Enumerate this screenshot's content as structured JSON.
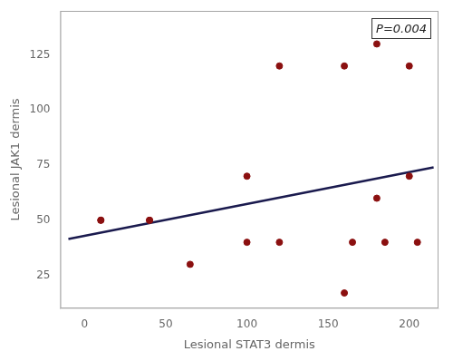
{
  "chart_data": {
    "type": "scatter",
    "x_label": "Lesional STAT3 dermis",
    "y_label": "Lesional JAK1 dermis",
    "annotations": [
      "P=0.004"
    ],
    "series": [
      {
        "type": "scatter",
        "color": "#8B1010",
        "marker": "circle",
        "x": [
          10,
          10,
          40,
          40,
          65,
          100,
          100,
          120,
          120,
          160,
          160,
          165,
          180,
          180,
          185,
          200,
          200,
          205
        ],
        "values": [
          50,
          50,
          50,
          50,
          30,
          40,
          70,
          120,
          40,
          120,
          17,
          40,
          130,
          60,
          40,
          70,
          120,
          40
        ]
      },
      {
        "type": "line",
        "color": "#1a1a4e",
        "line_style": "solid",
        "x": [
          -10,
          215
        ],
        "values": [
          41.5,
          74.0
        ]
      }
    ],
    "xlim": [
      -15,
      218
    ],
    "ylim": [
      10,
      145
    ],
    "xticks": [
      0,
      50,
      100,
      150,
      200
    ],
    "yticks": [
      25,
      50,
      75,
      100,
      125
    ],
    "grid": false
  }
}
